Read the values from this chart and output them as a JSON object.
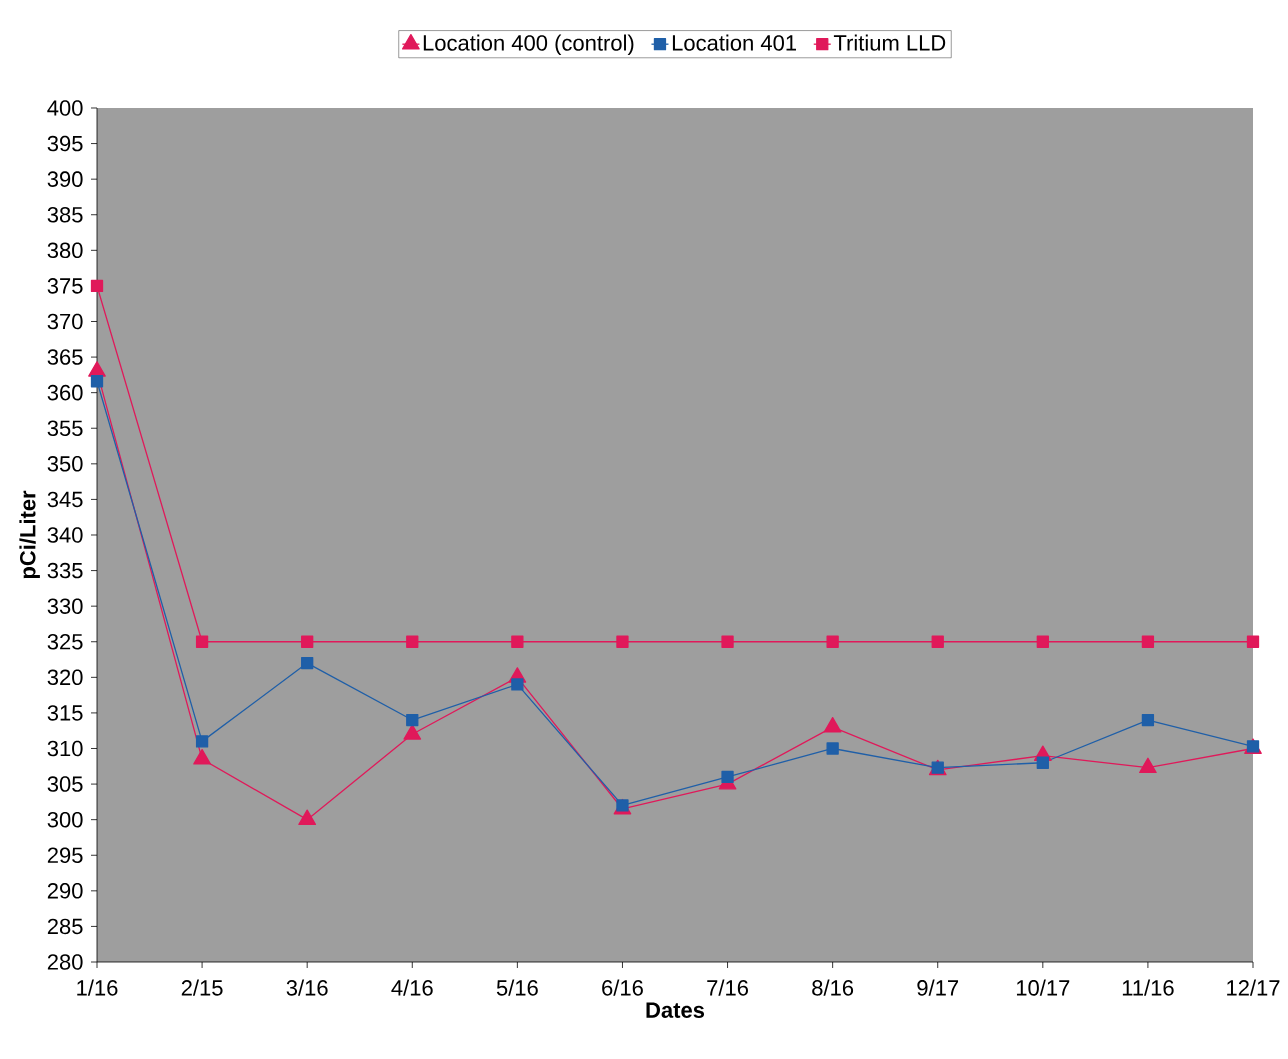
{
  "chart_data": {
    "type": "line",
    "xlabel": "Dates",
    "ylabel": "pCi/Liter",
    "categories": [
      "1/16",
      "2/15",
      "3/16",
      "4/16",
      "5/16",
      "6/16",
      "7/16",
      "8/16",
      "9/17",
      "10/17",
      "11/16",
      "12/17"
    ],
    "ylim": [
      280,
      400
    ],
    "yticks": [
      280,
      285,
      290,
      295,
      300,
      305,
      310,
      315,
      320,
      325,
      330,
      335,
      340,
      345,
      350,
      355,
      360,
      365,
      370,
      375,
      380,
      385,
      390,
      395,
      400
    ],
    "legend": "top",
    "line_style": "solid",
    "series": [
      {
        "name": "Location 400 (control)",
        "color": "#e0195a",
        "marker": "triangle",
        "values": [
          363,
          308.5,
          300,
          312,
          320,
          301.5,
          305,
          313,
          307,
          309,
          307.3,
          310
        ]
      },
      {
        "name": "Location 401",
        "color": "#1f5fa8",
        "marker": "square",
        "values": [
          361.6,
          311,
          322,
          314,
          319,
          302,
          306,
          310,
          307.3,
          308,
          314,
          310.3
        ]
      },
      {
        "name": "Tritium LLD",
        "color": "#e0195a",
        "marker": "square",
        "values": [
          375,
          325,
          325,
          325,
          325,
          325,
          325,
          325,
          325,
          325,
          325,
          325
        ]
      }
    ]
  }
}
